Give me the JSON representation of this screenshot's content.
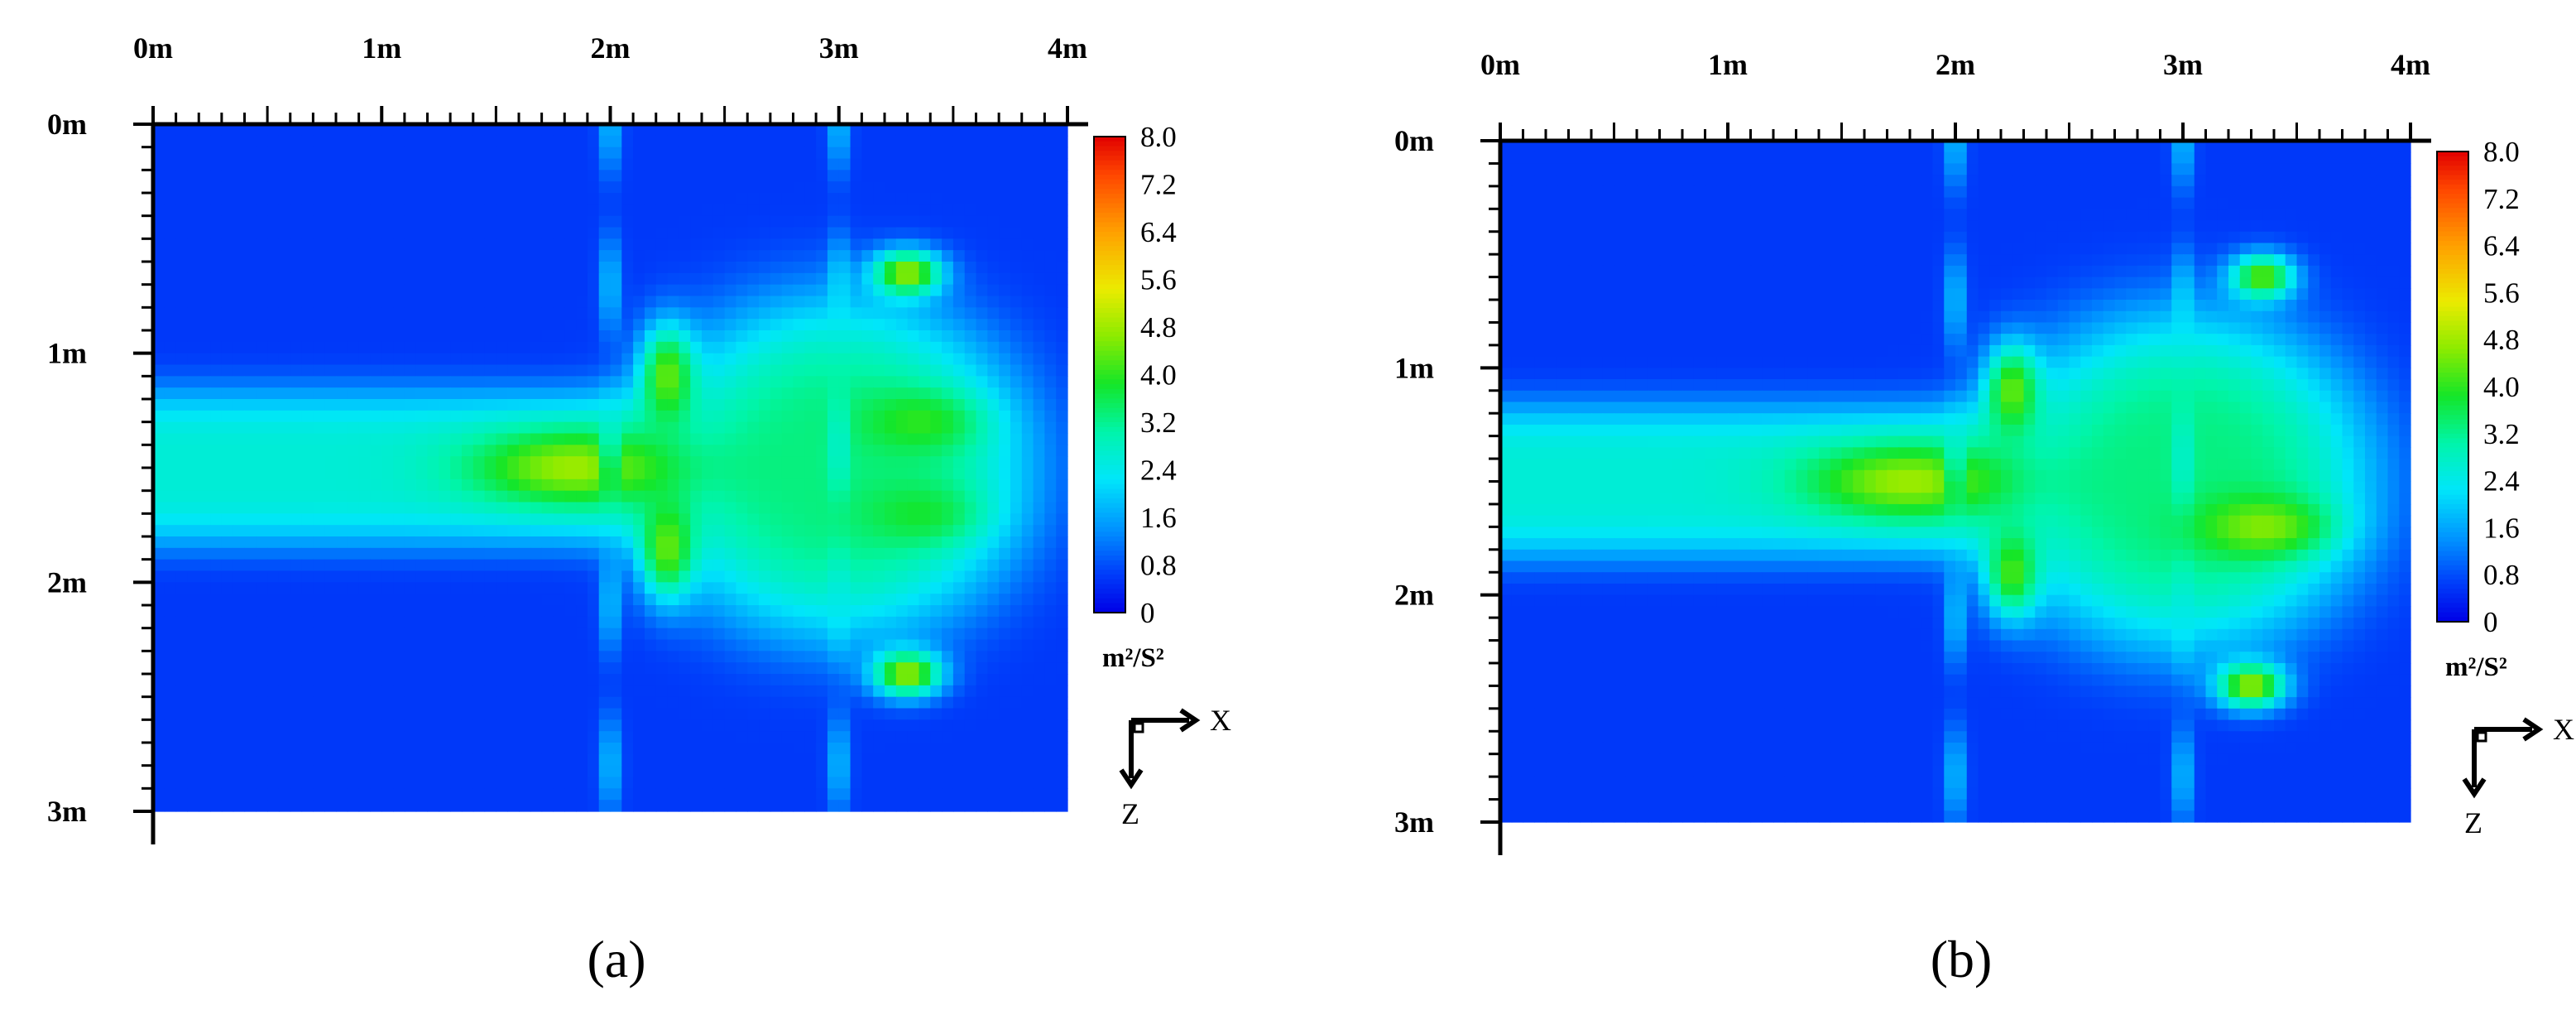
{
  "chart_data": [
    {
      "type": "heatmap",
      "panel_label": "a",
      "caption": "(a)",
      "x_ticks": [
        "0m",
        "1m",
        "2m",
        "3m",
        "4m"
      ],
      "z_ticks": [
        "0m",
        "1m",
        "2m",
        "3m"
      ],
      "xlim": [
        0,
        4
      ],
      "zlim": [
        0,
        3
      ],
      "colorbar": {
        "ticks": [
          "8.0",
          "7.2",
          "6.4",
          "5.6",
          "4.8",
          "4.0",
          "3.2",
          "2.4",
          "1.6",
          "0.8",
          "0"
        ],
        "range": [
          0,
          8
        ],
        "unit": "m²/S²"
      },
      "axis_indicator": {
        "x": "X",
        "z": "Z"
      },
      "background_value": 0.6,
      "features": [
        {
          "kind": "band",
          "x0": 0.0,
          "x1": 2.3,
          "z_center": 1.5,
          "z_half_width": 0.35,
          "value": 2.6
        },
        {
          "kind": "region",
          "x_center": 3.0,
          "z_center": 1.5,
          "x_radius": 0.9,
          "z_radius": 0.8,
          "value": 3.3
        },
        {
          "kind": "hotspot",
          "x": 1.85,
          "z": 1.5,
          "rx": 0.45,
          "rz": 0.16,
          "value": 4.8
        },
        {
          "kind": "hotspot",
          "x": 2.25,
          "z": 1.1,
          "rx": 0.12,
          "rz": 0.22,
          "value": 4.4
        },
        {
          "kind": "hotspot",
          "x": 2.25,
          "z": 1.85,
          "rx": 0.12,
          "rz": 0.22,
          "value": 4.4
        },
        {
          "kind": "hotspot",
          "x": 3.3,
          "z": 0.65,
          "rx": 0.15,
          "rz": 0.1,
          "value": 4.8
        },
        {
          "kind": "hotspot",
          "x": 3.3,
          "z": 2.4,
          "rx": 0.15,
          "rz": 0.1,
          "value": 4.8
        },
        {
          "kind": "hotspot",
          "x": 3.35,
          "z": 1.3,
          "rx": 0.25,
          "rz": 0.13,
          "value": 4.0
        },
        {
          "kind": "hotspot",
          "x": 3.35,
          "z": 1.7,
          "rx": 0.25,
          "rz": 0.13,
          "value": 3.8
        },
        {
          "kind": "stripe",
          "x": 2.0,
          "value": 2.4
        },
        {
          "kind": "stripe",
          "x": 3.0,
          "value": 2.4
        }
      ]
    },
    {
      "type": "heatmap",
      "panel_label": "b",
      "caption": "(b)",
      "x_ticks": [
        "0m",
        "1m",
        "2m",
        "3m",
        "4m"
      ],
      "z_ticks": [
        "0m",
        "1m",
        "2m",
        "3m"
      ],
      "xlim": [
        0,
        4
      ],
      "zlim": [
        0,
        3
      ],
      "colorbar": {
        "ticks": [
          "8.0",
          "7.2",
          "6.4",
          "5.6",
          "4.8",
          "4.0",
          "3.2",
          "2.4",
          "1.6",
          "0.8",
          "0"
        ],
        "range": [
          0,
          8
        ],
        "unit": "m²/S²"
      },
      "axis_indicator": {
        "x": "X",
        "z": "Z"
      },
      "background_value": 0.6,
      "features": [
        {
          "kind": "band",
          "x0": 0.0,
          "x1": 2.3,
          "z_center": 1.5,
          "z_half_width": 0.35,
          "value": 2.6
        },
        {
          "kind": "region",
          "x_center": 3.0,
          "z_center": 1.5,
          "x_radius": 0.9,
          "z_radius": 0.8,
          "value": 3.3
        },
        {
          "kind": "hotspot",
          "x": 1.8,
          "z": 1.5,
          "rx": 0.45,
          "rz": 0.16,
          "value": 4.8
        },
        {
          "kind": "hotspot",
          "x": 2.25,
          "z": 1.1,
          "rx": 0.12,
          "rz": 0.2,
          "value": 4.4
        },
        {
          "kind": "hotspot",
          "x": 2.25,
          "z": 1.9,
          "rx": 0.12,
          "rz": 0.2,
          "value": 4.2
        },
        {
          "kind": "hotspot",
          "x": 3.35,
          "z": 0.6,
          "rx": 0.14,
          "rz": 0.1,
          "value": 4.4
        },
        {
          "kind": "hotspot",
          "x": 3.3,
          "z": 2.4,
          "rx": 0.15,
          "rz": 0.1,
          "value": 4.8
        },
        {
          "kind": "hotspot",
          "x": 3.35,
          "z": 1.7,
          "rx": 0.28,
          "rz": 0.13,
          "value": 4.6
        },
        {
          "kind": "stripe",
          "x": 2.0,
          "value": 2.4
        },
        {
          "kind": "stripe",
          "x": 3.0,
          "value": 2.4
        }
      ]
    }
  ]
}
